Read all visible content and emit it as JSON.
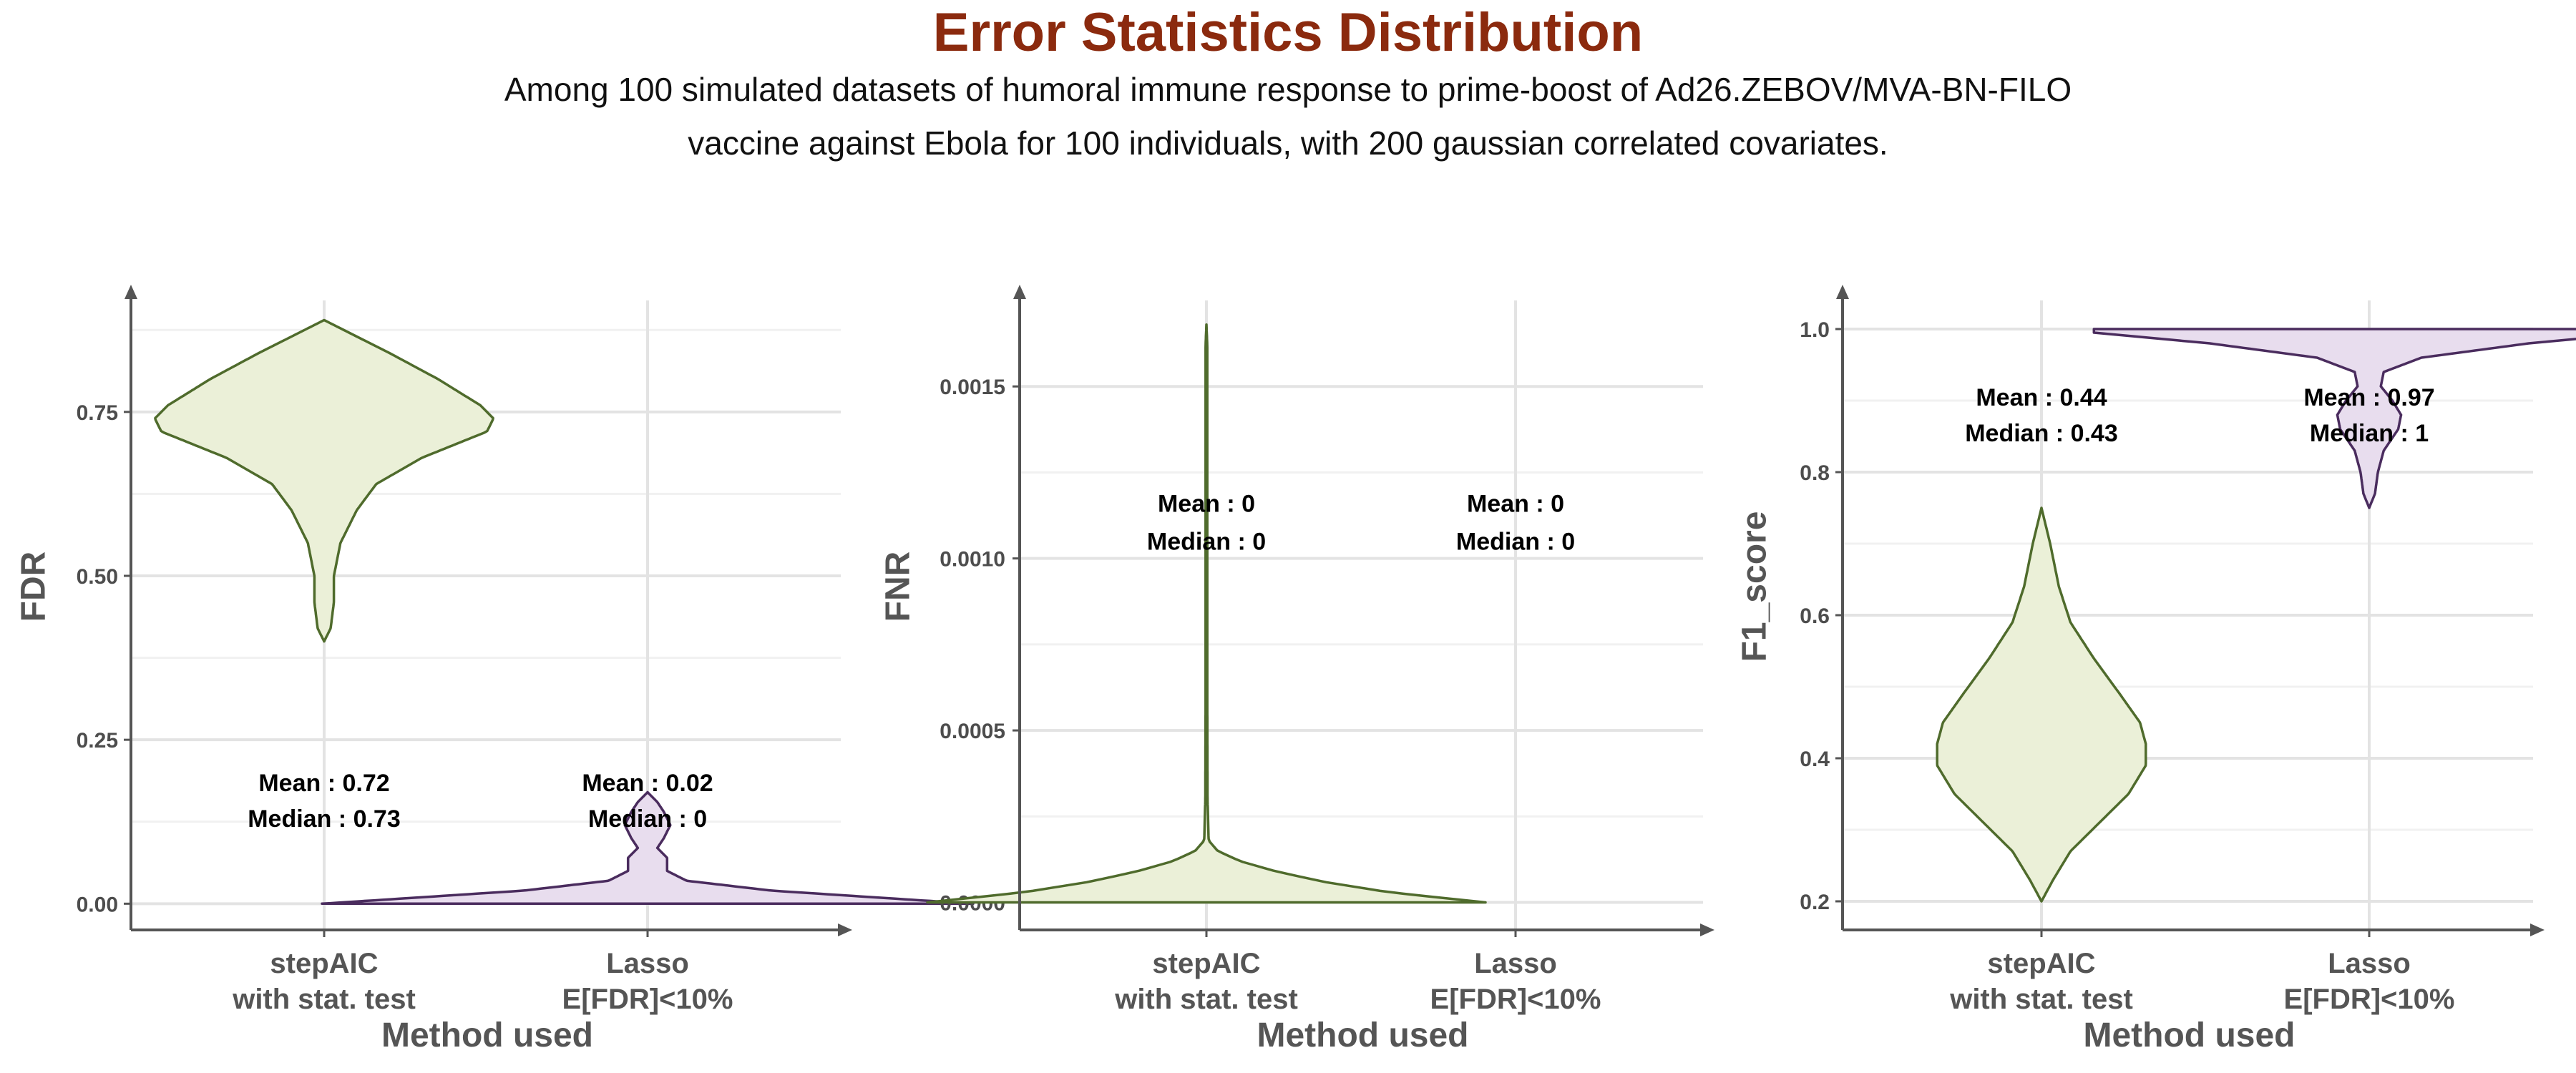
{
  "title": "Error Statistics Distribution",
  "subtitle_lines": [
    "Among 100 simulated datasets of humoral immune response to prime-boost of Ad26.ZEBOV/MVA-BN-FILO",
    "vaccine against Ebola for 100 individuals, with 200 gaussian correlated covariates."
  ],
  "colors": {
    "title": "#8B2A0E",
    "stepAIC_fill": "#EBF0D8",
    "stepAIC_line": "#4F6B2C",
    "lasso_fill": "#E8DDEE",
    "lasso_line": "#4A2C5E",
    "axis": "#555555",
    "grid_major": "#E3E3E3",
    "grid_minor": "#F1F1F1"
  },
  "chart_data": [
    {
      "type": "violin",
      "ylabel": "FDR",
      "xlabel": "Method used",
      "categories": [
        [
          "stepAIC",
          "with stat. test"
        ],
        [
          "Lasso",
          "E[FDR]<10%"
        ]
      ],
      "ylim": [
        -0.04,
        0.92
      ],
      "yticks": [
        0.0,
        0.25,
        0.5,
        0.75
      ],
      "ytick_labels": [
        "0.00",
        "0.25",
        "0.50",
        "0.75"
      ],
      "series": [
        {
          "category": 0,
          "stats": [
            "Mean : 0.72",
            "Median : 0.73"
          ],
          "stats_y": [
            0.185,
            0.13
          ],
          "density": [
            [
              0.4,
              0.0
            ],
            [
              0.42,
              0.02
            ],
            [
              0.46,
              0.03
            ],
            [
              0.5,
              0.03
            ],
            [
              0.55,
              0.05
            ],
            [
              0.6,
              0.1
            ],
            [
              0.64,
              0.16
            ],
            [
              0.68,
              0.3
            ],
            [
              0.72,
              0.5
            ],
            [
              0.74,
              0.52
            ],
            [
              0.76,
              0.48
            ],
            [
              0.8,
              0.35
            ],
            [
              0.84,
              0.2
            ],
            [
              0.87,
              0.08
            ],
            [
              0.89,
              0.0
            ]
          ]
        },
        {
          "category": 1,
          "stats": [
            "Mean : 0.02",
            "Median : 0"
          ],
          "stats_y": [
            0.185,
            0.13
          ],
          "density": [
            [
              0.0,
              1.0
            ],
            [
              0.008,
              0.75
            ],
            [
              0.02,
              0.38
            ],
            [
              0.035,
              0.12
            ],
            [
              0.05,
              0.06
            ],
            [
              0.07,
              0.06
            ],
            [
              0.085,
              0.03
            ],
            [
              0.1,
              0.05
            ],
            [
              0.12,
              0.07
            ],
            [
              0.14,
              0.05
            ],
            [
              0.155,
              0.03
            ],
            [
              0.17,
              0.0
            ]
          ]
        }
      ]
    },
    {
      "type": "violin",
      "ylabel": "FNR",
      "xlabel": "Method used",
      "categories": [
        [
          "stepAIC",
          "with stat. test"
        ],
        [
          "Lasso",
          "E[FDR]<10%"
        ]
      ],
      "ylim": [
        -8e-05,
        0.00175
      ],
      "yticks": [
        0.0,
        0.0005,
        0.001,
        0.0015
      ],
      "ytick_labels": [
        "0.0000",
        "0.0005",
        "0.0010",
        "0.0015"
      ],
      "series": [
        {
          "category": 0,
          "stats": [
            "Mean : 0",
            "Median : 0"
          ],
          "stats_y": [
            0.00116,
            0.00105
          ],
          "density": [
            [
              0.0,
              1.0
            ],
            [
              3e-05,
              0.65
            ],
            [
              6e-05,
              0.42
            ],
            [
              9e-05,
              0.25
            ],
            [
              0.00012,
              0.12
            ],
            [
              0.00015,
              0.04
            ],
            [
              0.00018,
              0.008
            ],
            [
              0.0003,
              0.004
            ],
            [
              0.0006,
              0.003
            ],
            [
              0.001,
              0.003
            ],
            [
              0.0014,
              0.003
            ],
            [
              0.00162,
              0.003
            ],
            [
              0.00168,
              0.0
            ]
          ]
        },
        {
          "category": 1,
          "stats": [
            "Mean : 0",
            "Median : 0"
          ],
          "stats_y": [
            0.00116,
            0.00105
          ]
        }
      ]
    },
    {
      "type": "violin",
      "ylabel": "F1_score",
      "xlabel": "Method used",
      "categories": [
        [
          "stepAIC",
          "with stat. test"
        ],
        [
          "Lasso",
          "E[FDR]<10%"
        ]
      ],
      "ylim": [
        0.16,
        1.04
      ],
      "yticks": [
        0.2,
        0.4,
        0.6,
        0.8,
        1.0
      ],
      "ytick_labels": [
        "0.2",
        "0.4",
        "0.6",
        "0.8",
        "1.0"
      ],
      "series": [
        {
          "category": 0,
          "stats": [
            "Mean : 0.44",
            "Median : 0.43"
          ],
          "stats_y": [
            0.905,
            0.855
          ],
          "density": [
            [
              0.2,
              0.0
            ],
            [
              0.23,
              0.04
            ],
            [
              0.27,
              0.1
            ],
            [
              0.31,
              0.2
            ],
            [
              0.35,
              0.3
            ],
            [
              0.39,
              0.36
            ],
            [
              0.42,
              0.36
            ],
            [
              0.45,
              0.34
            ],
            [
              0.49,
              0.27
            ],
            [
              0.54,
              0.18
            ],
            [
              0.59,
              0.1
            ],
            [
              0.64,
              0.06
            ],
            [
              0.7,
              0.03
            ],
            [
              0.75,
              0.0
            ]
          ]
        },
        {
          "category": 1,
          "stats": [
            "Mean : 0.97",
            "Median : 1"
          ],
          "stats_y": [
            0.905,
            0.855
          ],
          "density": [
            [
              0.75,
              0.0
            ],
            [
              0.77,
              0.02
            ],
            [
              0.8,
              0.03
            ],
            [
              0.83,
              0.05
            ],
            [
              0.86,
              0.1
            ],
            [
              0.88,
              0.11
            ],
            [
              0.9,
              0.08
            ],
            [
              0.92,
              0.04
            ],
            [
              0.94,
              0.05
            ],
            [
              0.96,
              0.18
            ],
            [
              0.98,
              0.55
            ],
            [
              0.995,
              0.95
            ],
            [
              1.0,
              0.95
            ]
          ]
        }
      ]
    }
  ]
}
